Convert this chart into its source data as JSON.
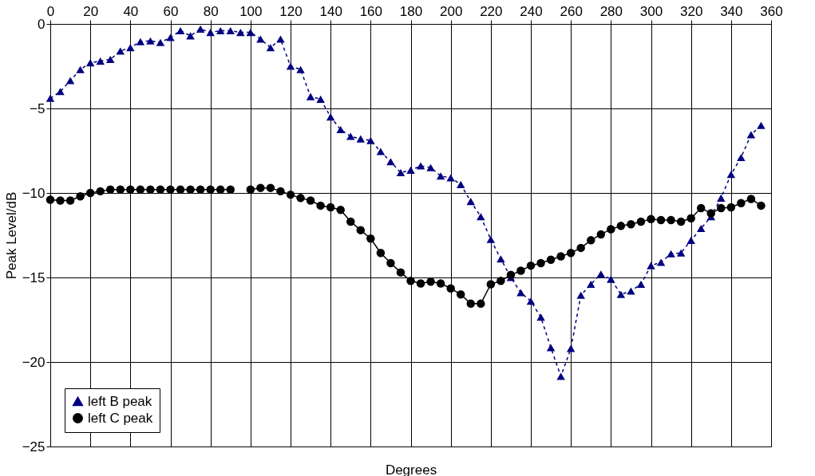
{
  "chart_data": {
    "type": "line",
    "xlabel": "Degrees",
    "ylabel": "Peak Level/dB",
    "x": [
      0,
      5,
      10,
      15,
      20,
      25,
      30,
      35,
      40,
      45,
      50,
      55,
      60,
      65,
      70,
      75,
      80,
      85,
      90,
      95,
      100,
      105,
      110,
      115,
      120,
      125,
      130,
      135,
      140,
      145,
      150,
      155,
      160,
      165,
      170,
      175,
      180,
      185,
      190,
      195,
      200,
      205,
      210,
      215,
      220,
      225,
      230,
      235,
      240,
      245,
      250,
      255,
      260,
      265,
      270,
      275,
      280,
      285,
      290,
      295,
      300,
      305,
      310,
      315,
      320,
      325,
      330,
      335,
      340,
      345,
      350,
      355
    ],
    "series": [
      {
        "name": "left B peak",
        "color": "#000080",
        "marker": "triangle",
        "line_style": "dashed",
        "values": [
          -4.4,
          -4.0,
          -3.35,
          -2.7,
          -2.3,
          -2.2,
          -2.1,
          -1.6,
          -1.4,
          -1.05,
          -1.0,
          -1.1,
          -0.8,
          -0.4,
          -0.7,
          -0.3,
          -0.5,
          -0.4,
          -0.4,
          -0.5,
          -0.5,
          -0.9,
          -1.4,
          -0.9,
          -2.5,
          -2.7,
          -4.3,
          -4.45,
          -5.5,
          -6.25,
          -6.65,
          -6.8,
          -6.9,
          -7.55,
          -8.15,
          -8.8,
          -8.65,
          -8.4,
          -8.5,
          -9.0,
          -9.1,
          -9.5,
          -10.5,
          -11.4,
          -12.75,
          -13.9,
          -15.0,
          -15.9,
          -16.4,
          -17.35,
          -19.15,
          -20.85,
          -19.2,
          -16.05,
          -15.4,
          -14.8,
          -15.1,
          -16.0,
          -15.8,
          -15.4,
          -14.3,
          -14.1,
          -13.6,
          -13.55,
          -12.8,
          -12.1,
          -11.4,
          -10.3,
          -8.9,
          -7.9,
          -6.55,
          -6.0
        ]
      },
      {
        "name": "left C peak",
        "color": "#000000",
        "marker": "circle",
        "line_style": "solid",
        "values": [
          -10.4,
          -10.45,
          -10.45,
          -10.2,
          -10.0,
          -9.9,
          -9.8,
          -9.8,
          -9.8,
          -9.8,
          -9.8,
          -9.8,
          -9.8,
          -9.8,
          -9.8,
          -9.8,
          -9.8,
          -9.8,
          -9.8,
          null,
          -9.8,
          -9.7,
          -9.7,
          -9.9,
          -10.1,
          -10.3,
          -10.45,
          -10.75,
          -10.85,
          -11.0,
          -11.7,
          -12.2,
          -12.7,
          -13.55,
          -14.15,
          -14.7,
          -15.2,
          -15.35,
          -15.25,
          -15.35,
          -15.65,
          -16.0,
          -16.55,
          -16.55,
          -15.4,
          -15.2,
          -14.85,
          -14.6,
          -14.3,
          -14.15,
          -13.95,
          -13.75,
          -13.55,
          -13.25,
          -12.8,
          -12.45,
          -12.15,
          -11.95,
          -11.85,
          -11.7,
          -11.55,
          -11.6,
          -11.6,
          -11.7,
          -11.5,
          -10.9,
          -11.2,
          -10.9,
          -10.85,
          -10.6,
          -10.35,
          -10.75
        ]
      }
    ],
    "xlim": [
      0,
      360
    ],
    "xticks": [
      0,
      20,
      40,
      60,
      80,
      100,
      120,
      140,
      160,
      180,
      200,
      220,
      240,
      260,
      280,
      300,
      320,
      340,
      360
    ],
    "ylim": [
      -25,
      0
    ],
    "yticks": [
      -25,
      -20,
      -15,
      -10,
      -5,
      0
    ],
    "grid": true,
    "legend": "bottom left"
  }
}
